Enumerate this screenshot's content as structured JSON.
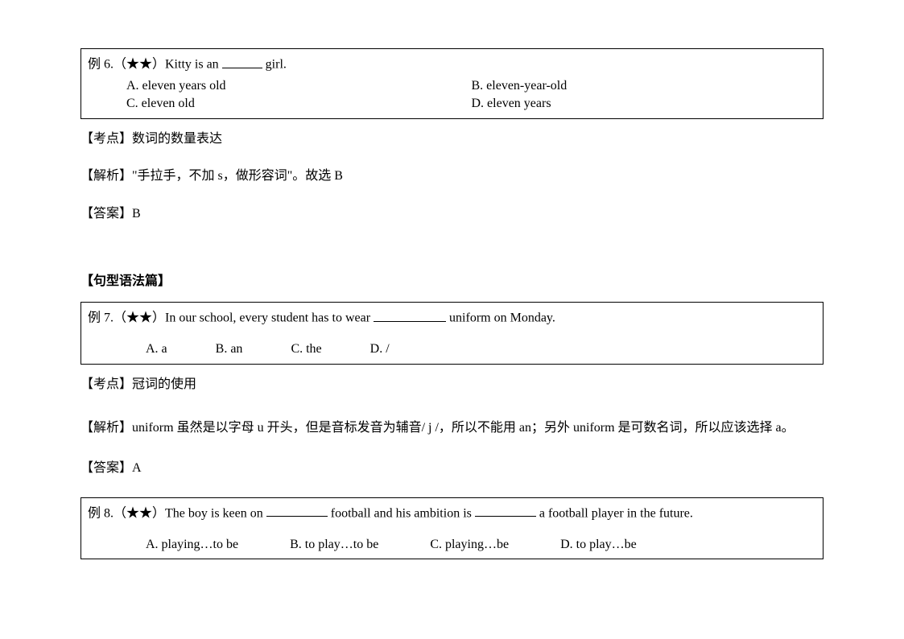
{
  "q6": {
    "prefix": "例 6.（★★）Kitty is an",
    "suffix": "girl.",
    "optA": "A. eleven years old",
    "optB": "B. eleven-year-old",
    "optC": "C. eleven old",
    "optD": "D. eleven years",
    "point_label": "【考点】",
    "point_text": "数词的数量表达",
    "analysis_label": "【解析】",
    "analysis_text": "\"手拉手，不加 s，做形容词\"。故选 B",
    "answer_label": "【答案】",
    "answer_text": "B"
  },
  "section_heading": "【句型语法篇】",
  "q7": {
    "prefix": "例 7.（★★）In our school, every student has to wear",
    "suffix": "uniform on Monday.",
    "optA": "A. a",
    "optB": "B. an",
    "optC": "C. the",
    "optD": "D. /",
    "point_label": "【考点】",
    "point_text": "冠词的使用",
    "analysis_label": "【解析】",
    "analysis_text": "uniform 虽然是以字母 u 开头，但是音标发音为辅音/ j /，所以不能用 an；另外 uniform 是可数名词，所以应该选择 a。",
    "answer_label": "【答案】",
    "answer_text": "A"
  },
  "q8": {
    "prefix": "例 8.（★★）The boy is keen on",
    "mid": "football and his ambition is",
    "suffix": "a football player in the future.",
    "optA": "A. playing…to be",
    "optB": "B. to play…to be",
    "optC": "C. playing…be",
    "optD": "D. to play…be"
  }
}
